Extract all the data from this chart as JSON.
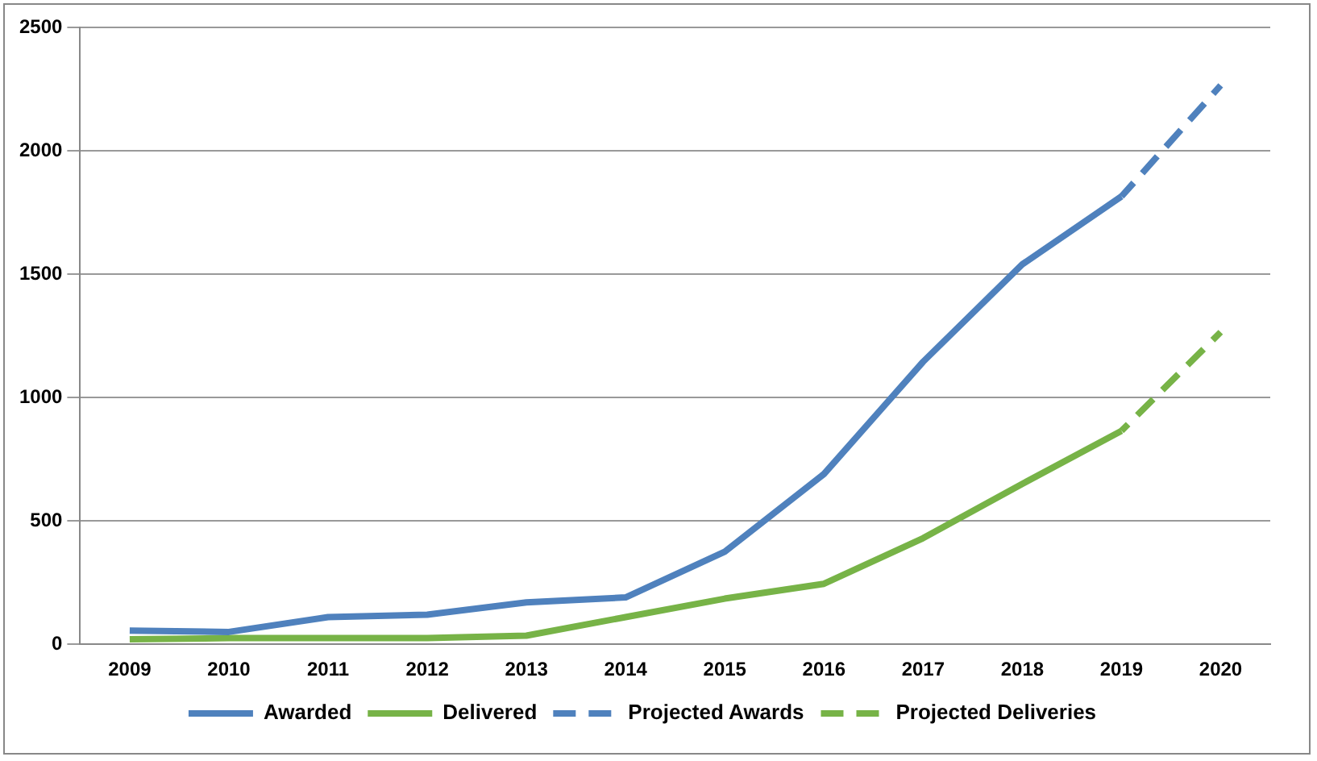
{
  "chart_data": {
    "type": "line",
    "categories": [
      "2009",
      "2010",
      "2011",
      "2012",
      "2013",
      "2014",
      "2015",
      "2016",
      "2017",
      "2018",
      "2019",
      "2020"
    ],
    "series": [
      {
        "name": "Awarded",
        "color": "#4f81bd",
        "line_style": "solid",
        "values": [
          55,
          50,
          110,
          120,
          170,
          190,
          375,
          690,
          1145,
          1540,
          1815,
          null
        ]
      },
      {
        "name": "Delivered",
        "color": "#77b347",
        "line_style": "solid",
        "values": [
          20,
          25,
          25,
          25,
          35,
          110,
          185,
          245,
          430,
          650,
          865,
          null
        ]
      },
      {
        "name": "Projected Awards",
        "color": "#4f81bd",
        "line_style": "dashed",
        "values": [
          null,
          null,
          null,
          null,
          null,
          null,
          null,
          null,
          null,
          null,
          1815,
          2265
        ]
      },
      {
        "name": "Projected Deliveries",
        "color": "#77b347",
        "line_style": "dashed",
        "values": [
          null,
          null,
          null,
          null,
          null,
          null,
          null,
          null,
          null,
          null,
          865,
          1265
        ]
      }
    ],
    "ylim": [
      0,
      2500
    ],
    "yticks": [
      0,
      500,
      1000,
      1500,
      2000,
      2500
    ],
    "grid": "y",
    "legend": "bottom",
    "marker": "none"
  }
}
